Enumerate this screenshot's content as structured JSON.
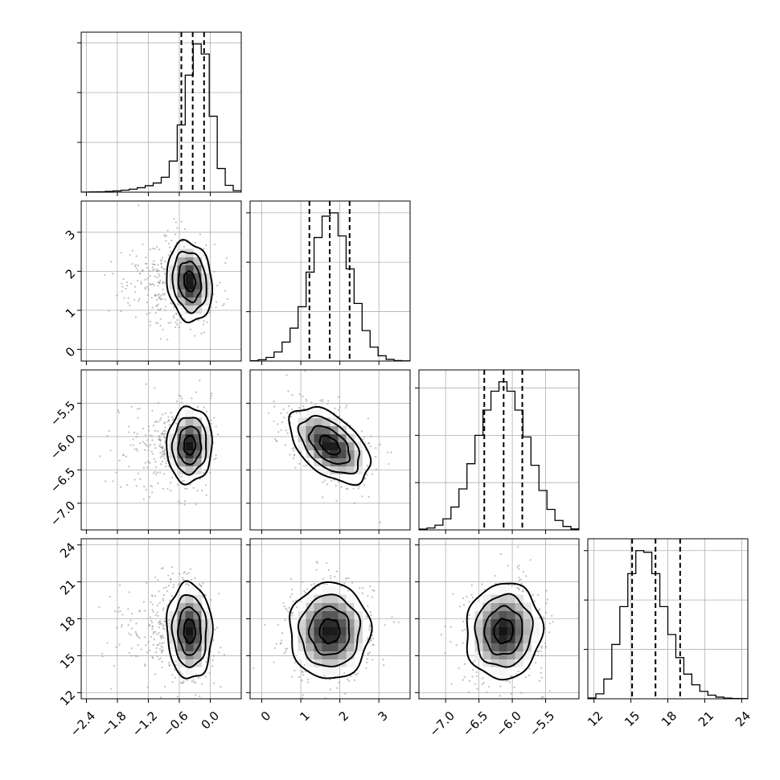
{
  "chart_data": {
    "type": "corner",
    "n_params": 4,
    "parameters": [
      {
        "range": [
          -2.5,
          0.6
        ],
        "ticks": [
          -2.4,
          -1.8,
          -1.2,
          -0.6,
          0.0
        ],
        "tick_labels": [
          "−2.4",
          "−1.8",
          "−1.2",
          "−0.6",
          "0.0"
        ],
        "quantiles": [
          -0.56,
          -0.34,
          -0.12
        ],
        "mode": -0.4,
        "hist_edges": [
          -2.5,
          -2.345,
          -2.19,
          -2.035,
          -1.88,
          -1.725,
          -1.57,
          -1.415,
          -1.26,
          -1.105,
          -0.95,
          -0.795,
          -0.64,
          -0.485,
          -0.33,
          -0.175,
          -0.02,
          0.135,
          0.29,
          0.445,
          0.6
        ],
        "hist_counts": [
          1,
          2,
          3,
          6,
          10,
          16,
          24,
          36,
          52,
          74,
          120,
          250,
          540,
          940,
          1190,
          1110,
          610,
          190,
          55,
          12
        ],
        "hist_yticks": [
          400,
          800,
          1200
        ]
      },
      {
        "range": [
          -0.3,
          3.8
        ],
        "ticks": [
          0,
          1,
          2,
          3
        ],
        "tick_labels": [
          "0",
          "1",
          "2",
          "3"
        ],
        "quantiles": [
          1.22,
          1.74,
          2.25
        ],
        "mode": 1.74,
        "hist_edges": [
          -0.3,
          -0.095,
          0.11,
          0.315,
          0.52,
          0.725,
          0.93,
          1.135,
          1.34,
          1.545,
          1.75,
          1.955,
          2.16,
          2.365,
          2.57,
          2.775,
          2.98,
          3.185,
          3.39,
          3.595,
          3.8
        ],
        "hist_counts": [
          2,
          8,
          22,
          55,
          115,
          200,
          330,
          540,
          750,
          880,
          900,
          760,
          560,
          350,
          185,
          85,
          32,
          10,
          3,
          1
        ],
        "hist_yticks": [
          300,
          600,
          900
        ]
      },
      {
        "range": [
          -7.4,
          -5.0
        ],
        "ticks": [
          -7.0,
          -6.5,
          -6.0,
          -5.5
        ],
        "tick_labels": [
          "−7.0",
          "−6.5",
          "−6.0",
          "−5.5"
        ],
        "quantiles": [
          -6.42,
          -6.13,
          -5.85
        ],
        "mode": -6.13,
        "hist_edges": [
          -7.4,
          -7.28,
          -7.16,
          -7.04,
          -6.92,
          -6.8,
          -6.68,
          -6.56,
          -6.44,
          -6.32,
          -6.2,
          -6.08,
          -5.96,
          -5.84,
          -5.72,
          -5.6,
          -5.48,
          -5.36,
          -5.24,
          -5.12,
          -5.0
        ],
        "hist_counts": [
          5,
          12,
          30,
          70,
          145,
          260,
          420,
          600,
          760,
          880,
          940,
          880,
          760,
          590,
          410,
          250,
          130,
          60,
          22,
          6
        ],
        "hist_yticks": [
          300,
          600,
          900
        ]
      },
      {
        "range": [
          11.5,
          24.5
        ],
        "ticks": [
          12,
          15,
          18,
          21,
          24
        ],
        "tick_labels": [
          "12",
          "15",
          "18",
          "21",
          "24"
        ],
        "quantiles": [
          15.1,
          17.0,
          19.0
        ],
        "mode": 17.0,
        "hist_edges": [
          11.5,
          12.15,
          12.8,
          13.45,
          14.1,
          14.75,
          15.4,
          16.05,
          16.7,
          17.35,
          18.0,
          18.65,
          19.3,
          19.95,
          20.6,
          21.25,
          21.9,
          22.55,
          23.2,
          23.85,
          24.5
        ],
        "hist_counts": [
          5,
          30,
          120,
          330,
          560,
          760,
          900,
          890,
          760,
          560,
          390,
          250,
          150,
          85,
          45,
          22,
          10,
          4,
          2,
          1
        ],
        "hist_yticks": [
          300,
          600,
          900
        ]
      }
    ],
    "correlations": {
      "1_0": -0.15,
      "2_0": 0.05,
      "2_1": -0.5,
      "3_0": -0.05,
      "3_1": 0.0,
      "3_2": 0.05
    },
    "contour_levels": [
      0.118,
      0.393,
      0.675,
      0.865
    ],
    "grid": true,
    "colors": {
      "line": "#000000",
      "points": "#8a8a8a",
      "grid": "#b0b0b0"
    }
  }
}
